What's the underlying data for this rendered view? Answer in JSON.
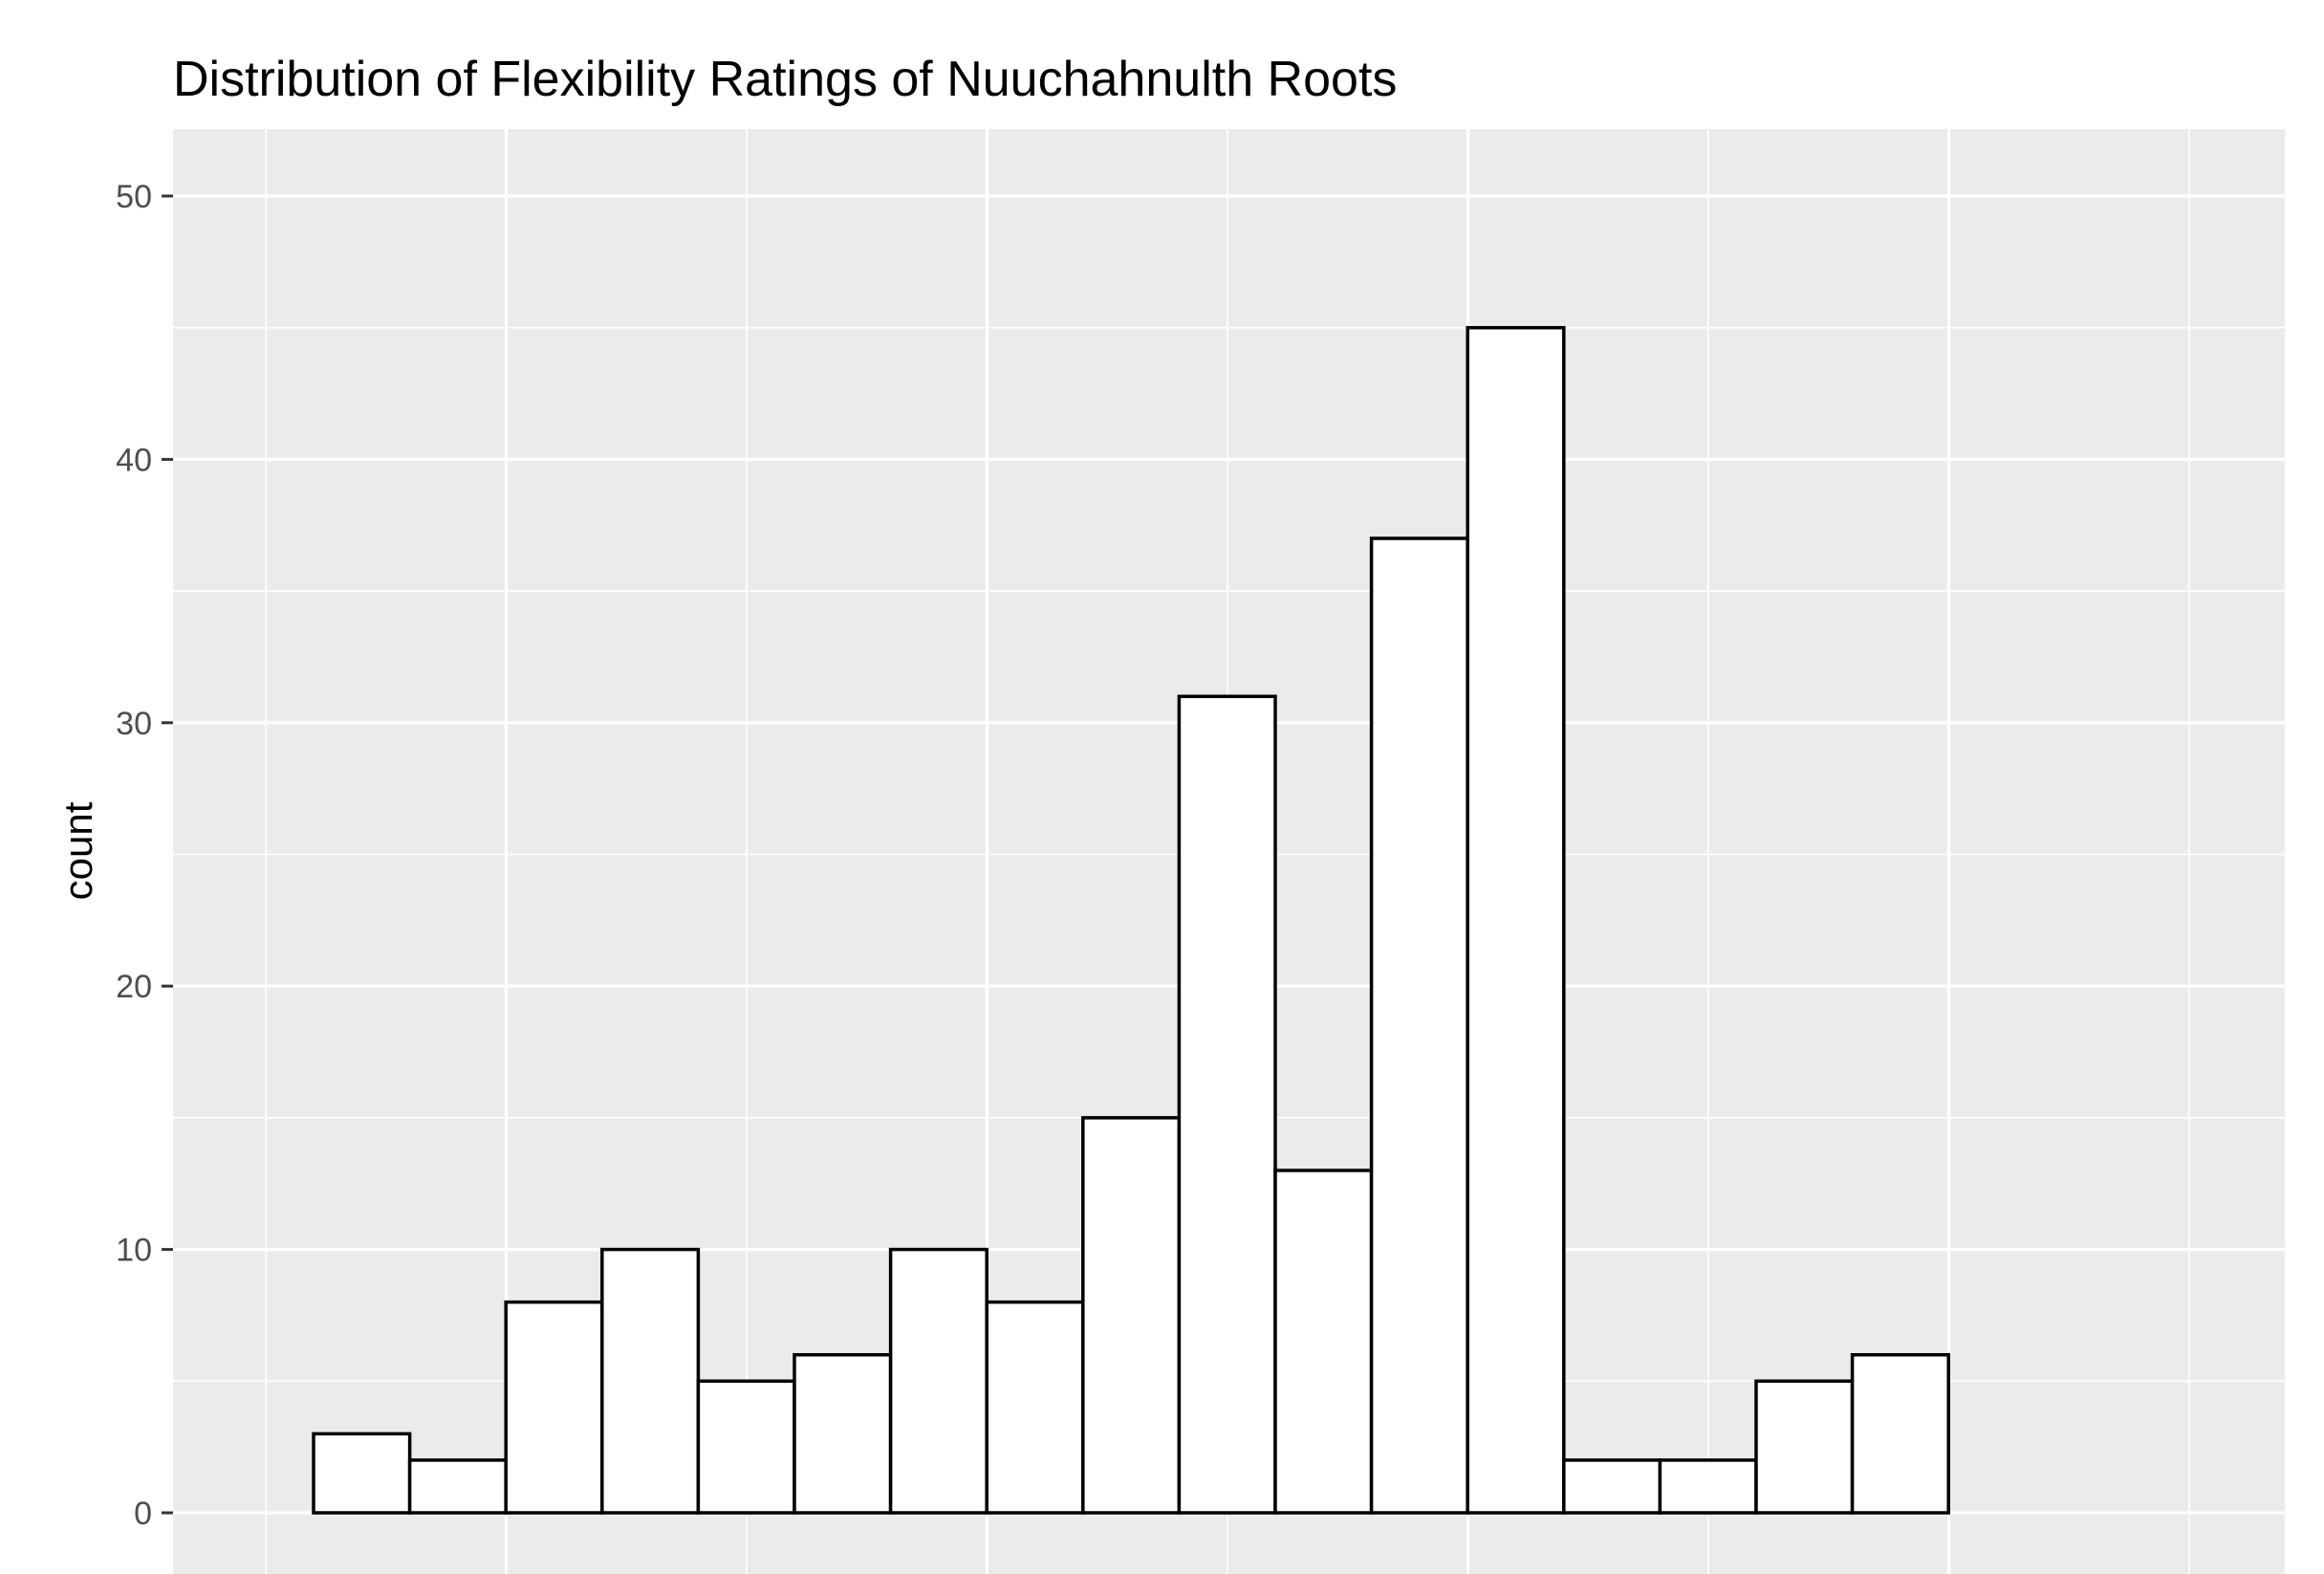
{
  "chart_data": {
    "type": "bar",
    "title": "Distribution of Flexibility Ratings of Nuuchahnulth Roots",
    "xlabel": "",
    "ylabel": "count",
    "ylim": [
      0,
      52.5
    ],
    "yticks": [
      0,
      10,
      20,
      30,
      40,
      50
    ],
    "grid": true,
    "panel_background": "#ebebeb",
    "gridline_color": "#ffffff",
    "bar_fill": "#ffffff",
    "bar_outline": "#000000",
    "values": [
      3,
      2,
      8,
      10,
      5,
      6,
      10,
      8,
      15,
      31,
      13,
      37,
      45,
      2,
      2,
      5,
      6,
      0,
      0
    ]
  }
}
